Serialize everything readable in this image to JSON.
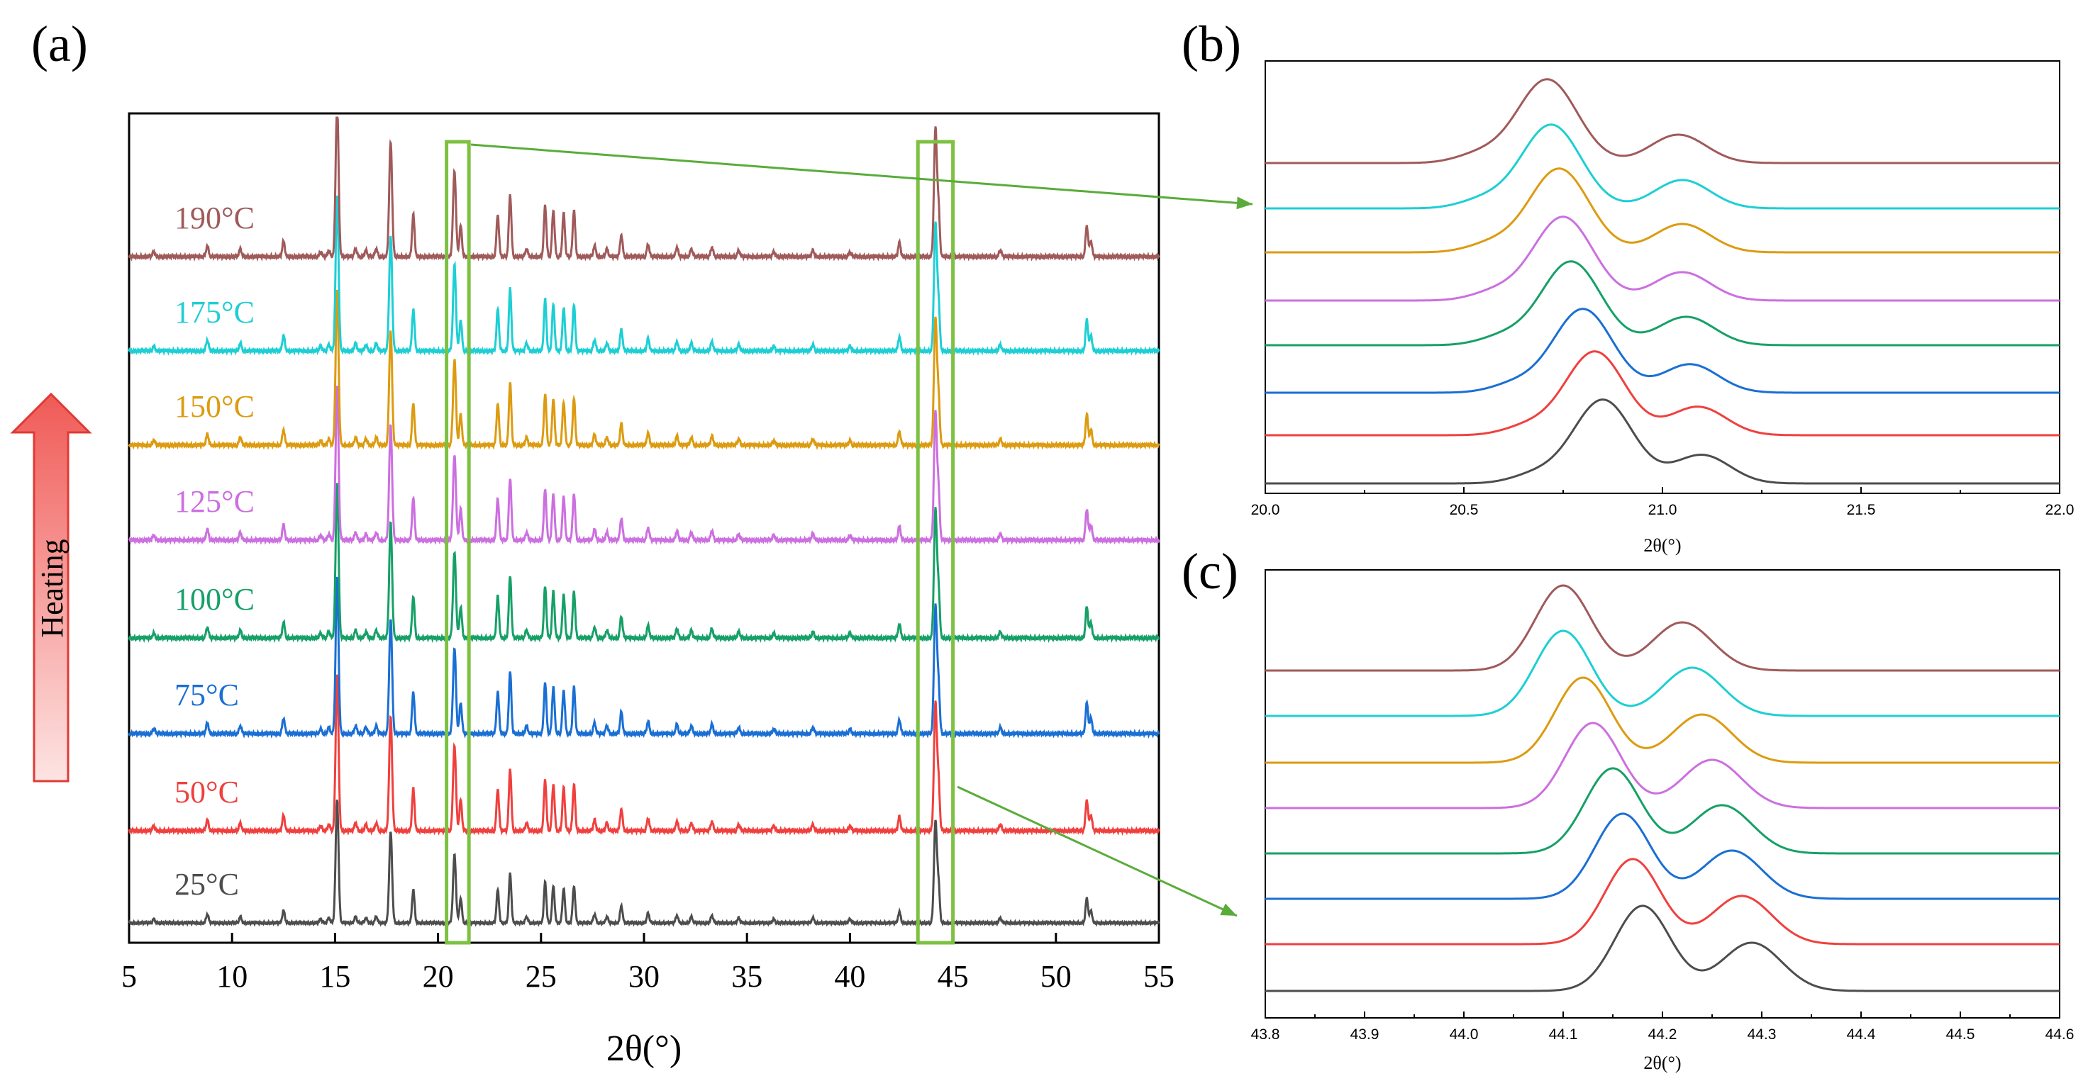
{
  "figure": {
    "panel_labels": [
      "(a)",
      "(b)",
      "(c)"
    ],
    "heating_label": "Heating",
    "colors": {
      "frame": "#000000",
      "highlight_box": "#7dc142",
      "pointer_arrow": "#5aac3a",
      "heating_arrow_stroke": "#e03a35",
      "heating_arrow_fill_top": "#f05a56",
      "heating_arrow_fill_bottom": "#fde4e3"
    }
  },
  "series": [
    {
      "name": "25°C",
      "color": "#4d4d4d"
    },
    {
      "name": "50°C",
      "color": "#f0403e"
    },
    {
      "name": "75°C",
      "color": "#1a6fd4"
    },
    {
      "name": "100°C",
      "color": "#16a067"
    },
    {
      "name": "125°C",
      "color": "#cc6fe0"
    },
    {
      "name": "150°C",
      "color": "#dc9b10"
    },
    {
      "name": "175°C",
      "color": "#1dcfd4"
    },
    {
      "name": "190°C",
      "color": "#a05a5a"
    }
  ],
  "chart_data": [
    {
      "panel": "(a)",
      "type": "line",
      "xlabel": "2θ(°)",
      "ylabel": "",
      "xlim": [
        5,
        55
      ],
      "xticks": [
        5,
        10,
        15,
        20,
        25,
        30,
        35,
        40,
        45,
        50,
        55
      ],
      "yticks_shown": false,
      "highlight_ranges": [
        [
          20,
          21.5
        ],
        [
          43.3,
          45
        ]
      ],
      "peaks": [
        {
          "x": 6.2,
          "h": 0.03
        },
        {
          "x": 8.8,
          "h": 0.07
        },
        {
          "x": 10.4,
          "h": 0.05
        },
        {
          "x": 12.5,
          "h": 0.1
        },
        {
          "x": 14.3,
          "h": 0.03
        },
        {
          "x": 14.7,
          "h": 0.04
        },
        {
          "x": 15.1,
          "h": 1.0
        },
        {
          "x": 16.0,
          "h": 0.05
        },
        {
          "x": 16.5,
          "h": 0.04
        },
        {
          "x": 17.0,
          "h": 0.05
        },
        {
          "x": 17.7,
          "h": 0.74
        },
        {
          "x": 18.8,
          "h": 0.27
        },
        {
          "x": 20.8,
          "h": 0.55
        },
        {
          "x": 21.1,
          "h": 0.2
        },
        {
          "x": 22.9,
          "h": 0.27
        },
        {
          "x": 23.5,
          "h": 0.4
        },
        {
          "x": 24.3,
          "h": 0.05
        },
        {
          "x": 25.2,
          "h": 0.33
        },
        {
          "x": 25.6,
          "h": 0.3
        },
        {
          "x": 26.1,
          "h": 0.28
        },
        {
          "x": 26.6,
          "h": 0.3
        },
        {
          "x": 27.6,
          "h": 0.07
        },
        {
          "x": 28.2,
          "h": 0.05
        },
        {
          "x": 28.9,
          "h": 0.14
        },
        {
          "x": 30.2,
          "h": 0.08
        },
        {
          "x": 31.6,
          "h": 0.06
        },
        {
          "x": 32.3,
          "h": 0.05
        },
        {
          "x": 33.3,
          "h": 0.06
        },
        {
          "x": 34.6,
          "h": 0.04
        },
        {
          "x": 36.3,
          "h": 0.03
        },
        {
          "x": 38.2,
          "h": 0.04
        },
        {
          "x": 40.0,
          "h": 0.03
        },
        {
          "x": 42.4,
          "h": 0.09
        },
        {
          "x": 44.15,
          "h": 0.82
        },
        {
          "x": 44.3,
          "h": 0.3
        },
        {
          "x": 47.3,
          "h": 0.04
        },
        {
          "x": 51.5,
          "h": 0.2
        },
        {
          "x": 51.7,
          "h": 0.1
        }
      ]
    },
    {
      "panel": "(b)",
      "type": "line",
      "xlabel": "2θ(°)",
      "ylabel": "",
      "xlim": [
        20.0,
        22.0
      ],
      "xtick_labels": [
        "20.0",
        "20.5",
        "21.0",
        "21.5",
        "22.0"
      ],
      "main_peak_x": [
        20.85,
        20.83,
        20.8,
        20.77,
        20.75,
        20.74,
        20.72,
        20.71
      ],
      "second_peak_x": [
        21.1,
        21.09,
        21.07,
        21.06,
        21.05,
        21.05,
        21.05,
        21.04
      ]
    },
    {
      "panel": "(c)",
      "type": "line",
      "xlabel": "2θ(°)",
      "ylabel": "",
      "xlim": [
        43.8,
        44.6
      ],
      "xtick_labels": [
        "43.8",
        "43.9",
        "44.0",
        "44.1",
        "44.2",
        "44.3",
        "44.4",
        "44.5",
        "44.6"
      ],
      "main_peak_x": [
        44.18,
        44.17,
        44.16,
        44.15,
        44.13,
        44.12,
        44.1,
        44.1
      ],
      "second_peak_x": [
        44.29,
        44.28,
        44.27,
        44.26,
        44.25,
        44.24,
        44.23,
        44.22
      ]
    }
  ]
}
